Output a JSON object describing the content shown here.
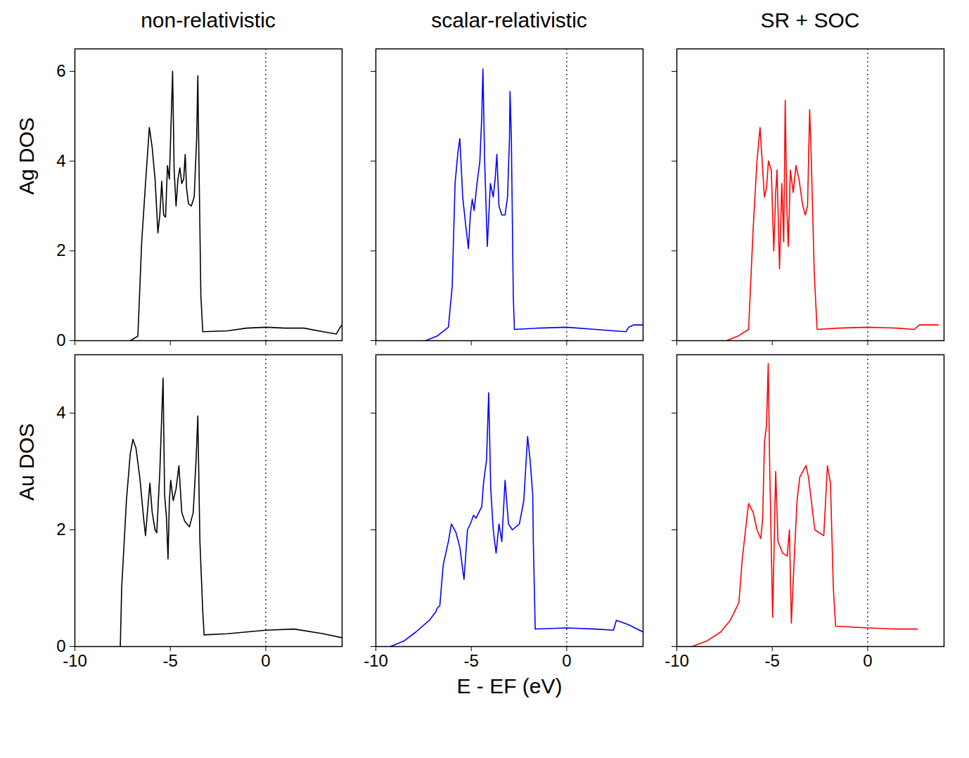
{
  "chart_data": [
    {
      "type": "line",
      "title": "non-relativistic",
      "y_label": "Ag DOS",
      "color": "#000000",
      "x": [
        -7.1,
        -6.9,
        -6.7,
        -6.5,
        -6.3,
        -6.1,
        -5.95,
        -5.8,
        -5.65,
        -5.55,
        -5.45,
        -5.35,
        -5.25,
        -5.15,
        -5.05,
        -4.95,
        -4.88,
        -4.8,
        -4.7,
        -4.6,
        -4.5,
        -4.4,
        -4.3,
        -4.22,
        -4.15,
        -4.05,
        -3.9,
        -3.75,
        -3.62,
        -3.56,
        -3.5,
        -3.4,
        -3.3,
        -2,
        -1,
        0,
        1,
        2,
        3,
        3.7,
        3.9,
        4
      ],
      "values": [
        0,
        0.05,
        0.1,
        2.2,
        3.5,
        4.75,
        4.3,
        3.6,
        2.4,
        2.8,
        3.55,
        2.8,
        2.75,
        3.9,
        3.6,
        5.0,
        6.0,
        3.8,
        3.0,
        3.6,
        3.85,
        3.5,
        3.6,
        4.15,
        3.4,
        3.05,
        3.0,
        3.2,
        4.5,
        5.9,
        4.0,
        1.0,
        0.2,
        0.22,
        0.28,
        0.3,
        0.28,
        0.28,
        0.2,
        0.15,
        0.3,
        0.35
      ],
      "xlim": [
        -10,
        4
      ],
      "xticks": [
        -10,
        -5,
        0
      ],
      "ylim": [
        0,
        6.5
      ],
      "yticks": [
        0,
        2,
        4,
        6
      ],
      "tick_labels": "y",
      "reference_line": {
        "x": 0,
        "line_style": "dotted"
      }
    },
    {
      "type": "line",
      "title": "scalar-relativistic",
      "color": "#0000ff",
      "x": [
        -7.4,
        -6.8,
        -6.2,
        -6.0,
        -5.85,
        -5.7,
        -5.6,
        -5.45,
        -5.3,
        -5.15,
        -5.05,
        -4.95,
        -4.85,
        -4.7,
        -4.55,
        -4.45,
        -4.39,
        -4.3,
        -4.16,
        -4.0,
        -3.85,
        -3.75,
        -3.66,
        -3.55,
        -3.4,
        -3.23,
        -3.1,
        -3.0,
        -2.97,
        -2.9,
        -2.8,
        -2.74,
        -1.5,
        0,
        1.5,
        3.1,
        3.25,
        3.5,
        4
      ],
      "values": [
        0,
        0.1,
        0.3,
        1.2,
        3.5,
        4.2,
        4.5,
        3.2,
        2.6,
        2.05,
        2.8,
        3.15,
        2.9,
        3.5,
        4.0,
        5.0,
        6.05,
        4.0,
        2.1,
        3.5,
        3.2,
        3.6,
        4.15,
        3.0,
        2.8,
        2.8,
        3.2,
        4.5,
        5.55,
        4.5,
        1.0,
        0.25,
        0.28,
        0.3,
        0.25,
        0.2,
        0.3,
        0.35,
        0.35
      ],
      "xlim": [
        -10,
        4
      ],
      "xticks": [
        -10,
        -5,
        0
      ],
      "ylim": [
        0,
        6.5
      ],
      "yticks": [
        0,
        2,
        4,
        6
      ],
      "tick_labels": false,
      "reference_line": {
        "x": 0,
        "line_style": "dotted"
      }
    },
    {
      "type": "line",
      "title": "SR + SOC",
      "color": "#ff0000",
      "x": [
        -7.4,
        -6.8,
        -6.24,
        -6.0,
        -5.8,
        -5.64,
        -5.5,
        -5.41,
        -5.3,
        -5.2,
        -5.05,
        -4.92,
        -4.82,
        -4.75,
        -4.62,
        -4.5,
        -4.4,
        -4.32,
        -4.24,
        -4.16,
        -4.05,
        -3.9,
        -3.76,
        -3.6,
        -3.4,
        -3.27,
        -3.15,
        -3.04,
        -2.95,
        -2.8,
        -2.65,
        -1.5,
        0,
        1.5,
        2.45,
        2.7,
        3.7
      ],
      "values": [
        0,
        0.1,
        0.25,
        2.5,
        4.0,
        4.75,
        3.8,
        3.2,
        3.4,
        4.0,
        3.8,
        2.0,
        3.3,
        3.8,
        1.6,
        3.5,
        2.2,
        5.35,
        3.0,
        2.1,
        3.8,
        3.3,
        3.9,
        3.6,
        3.0,
        2.8,
        3.0,
        5.15,
        4.0,
        1.5,
        0.25,
        0.28,
        0.3,
        0.28,
        0.25,
        0.35,
        0.35
      ],
      "xlim": [
        -10,
        4
      ],
      "xticks": [
        -10,
        -5,
        0
      ],
      "ylim": [
        0,
        6.5
      ],
      "yticks": [
        0,
        2,
        4,
        6
      ],
      "tick_labels": false,
      "reference_line": {
        "x": 0,
        "line_style": "dotted"
      }
    },
    {
      "type": "line",
      "y_label": "Au DOS",
      "color": "#000000",
      "x": [
        -7.62,
        -7.55,
        -7.3,
        -7.1,
        -6.96,
        -6.8,
        -6.6,
        -6.4,
        -6.3,
        -6.2,
        -6.07,
        -5.95,
        -5.8,
        -5.71,
        -5.55,
        -5.38,
        -5.3,
        -5.2,
        -5.12,
        -5.05,
        -4.98,
        -4.85,
        -4.7,
        -4.55,
        -4.4,
        -4.25,
        -4.0,
        -3.8,
        -3.65,
        -3.56,
        -3.45,
        -3.3,
        -3.23,
        -2,
        0,
        1.5,
        3,
        4
      ],
      "values": [
        0,
        1.0,
        2.5,
        3.3,
        3.55,
        3.4,
        2.9,
        2.2,
        1.9,
        2.3,
        2.8,
        2.3,
        2.0,
        1.95,
        3.0,
        4.6,
        2.6,
        2.2,
        1.5,
        2.5,
        2.85,
        2.5,
        2.7,
        3.1,
        2.3,
        2.15,
        2.05,
        2.3,
        3.2,
        3.95,
        1.8,
        0.6,
        0.2,
        0.22,
        0.28,
        0.3,
        0.22,
        0.15
      ],
      "xlim": [
        -10,
        4
      ],
      "xticks": [
        -10,
        -5,
        0
      ],
      "ylim": [
        0,
        5
      ],
      "yticks": [
        0,
        2,
        4
      ],
      "tick_labels": true,
      "reference_line": {
        "x": 0,
        "line_style": "dotted"
      }
    },
    {
      "type": "line",
      "x_label": "E - EF (eV)",
      "color": "#0000ff",
      "x": [
        -9.24,
        -8.5,
        -7.9,
        -7.2,
        -6.85,
        -6.8,
        -6.65,
        -6.47,
        -6.2,
        -6.04,
        -5.8,
        -5.6,
        -5.38,
        -5.2,
        -5.05,
        -4.88,
        -4.75,
        -4.6,
        -4.45,
        -4.36,
        -4.2,
        -4.09,
        -3.98,
        -3.85,
        -3.7,
        -3.55,
        -3.4,
        -3.23,
        -3.05,
        -2.85,
        -2.48,
        -2.25,
        -2.05,
        -1.92,
        -1.78,
        -1.75,
        -1.65,
        0,
        1.5,
        2.45,
        2.6,
        3.2,
        4
      ],
      "values": [
        0,
        0.1,
        0.25,
        0.45,
        0.6,
        0.65,
        0.7,
        1.4,
        1.8,
        2.1,
        1.95,
        1.7,
        1.15,
        2.0,
        2.1,
        2.25,
        2.2,
        2.3,
        2.4,
        2.8,
        3.2,
        4.35,
        2.7,
        2.0,
        1.6,
        2.1,
        1.8,
        2.85,
        2.1,
        2.0,
        2.1,
        2.5,
        3.6,
        3.2,
        2.6,
        1.8,
        0.3,
        0.32,
        0.3,
        0.28,
        0.45,
        0.38,
        0.25
      ],
      "xlim": [
        -10,
        4
      ],
      "xticks": [
        -10,
        -5,
        0
      ],
      "ylim": [
        0,
        5
      ],
      "yticks": [
        0,
        2,
        4
      ],
      "tick_labels": "x",
      "reference_line": {
        "x": 0,
        "line_style": "dotted"
      }
    },
    {
      "type": "line",
      "color": "#ff0000",
      "x": [
        -9.2,
        -8.4,
        -7.7,
        -7.2,
        -6.9,
        -6.75,
        -6.57,
        -6.4,
        -6.24,
        -6.0,
        -5.8,
        -5.6,
        -5.5,
        -5.41,
        -5.3,
        -5.21,
        -5.14,
        -4.98,
        -4.82,
        -4.7,
        -4.45,
        -4.22,
        -4.1,
        -4.0,
        -3.85,
        -3.7,
        -3.56,
        -3.23,
        -3.1,
        -2.77,
        -2.3,
        -2.11,
        -1.95,
        -1.8,
        -1.68,
        0,
        1.5,
        2.6
      ],
      "values": [
        0,
        0.1,
        0.25,
        0.45,
        0.65,
        0.75,
        1.5,
        2.0,
        2.45,
        2.3,
        2.0,
        1.85,
        2.2,
        3.5,
        3.8,
        4.85,
        3.2,
        0.5,
        3.0,
        1.8,
        1.6,
        1.55,
        2.0,
        0.4,
        1.5,
        2.5,
        2.9,
        3.1,
        2.9,
        2.0,
        1.9,
        3.1,
        2.8,
        1.0,
        0.35,
        0.32,
        0.3,
        0.3
      ],
      "xlim": [
        -10,
        4
      ],
      "xticks": [
        -10,
        -5,
        0
      ],
      "ylim": [
        0,
        5
      ],
      "yticks": [
        0,
        2,
        4
      ],
      "tick_labels": "x",
      "reference_line": {
        "x": 0,
        "line_style": "dotted"
      }
    }
  ]
}
